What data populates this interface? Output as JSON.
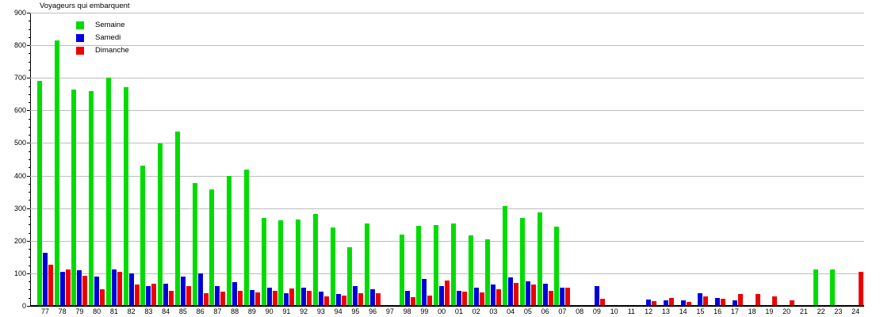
{
  "title": "Voyageurs qui embarquent",
  "colors": {
    "semaine": "#00dc00",
    "samedi": "#0000dc",
    "dimanche": "#ee0000",
    "grid": "#bdbdbd",
    "axis": "#000000"
  },
  "legend": {
    "items": [
      {
        "label": "Semaine",
        "color": "#00dc00"
      },
      {
        "label": "Samedi",
        "color": "#0000dc"
      },
      {
        "label": "Dimanche",
        "color": "#ee0000"
      }
    ]
  },
  "chart_data": {
    "type": "bar",
    "title": "Voyageurs qui embarquent",
    "categories": [
      "77",
      "78",
      "79",
      "80",
      "81",
      "82",
      "83",
      "84",
      "85",
      "86",
      "87",
      "88",
      "89",
      "90",
      "91",
      "92",
      "93",
      "94",
      "95",
      "96",
      "97",
      "98",
      "99",
      "00",
      "01",
      "02",
      "03",
      "04",
      "05",
      "06",
      "07",
      "08",
      "09",
      "10",
      "11",
      "12",
      "13",
      "14",
      "15",
      "16",
      "17",
      "18",
      "19",
      "20",
      "21",
      "22",
      "23",
      "24"
    ],
    "series": [
      {
        "name": "Semaine",
        "color": "#00dc00",
        "values": [
          690,
          815,
          663,
          659,
          700,
          671,
          430,
          498,
          535,
          376,
          358,
          398,
          418,
          270,
          263,
          264,
          281,
          242,
          179,
          252,
          0,
          220,
          246,
          249,
          253,
          217,
          205,
          307,
          271,
          286,
          243,
          0,
          0,
          0,
          0,
          0,
          0,
          0,
          0,
          0,
          0,
          0,
          0,
          0,
          0,
          112,
          112,
          0
        ]
      },
      {
        "name": "Samedi",
        "color": "#0000dc",
        "values": [
          162,
          104,
          110,
          90,
          113,
          100,
          60,
          68,
          90,
          100,
          60,
          73,
          49,
          56,
          38,
          57,
          43,
          36,
          62,
          51,
          0,
          46,
          82,
          60,
          47,
          55,
          65,
          87,
          75,
          67,
          55,
          0,
          60,
          0,
          0,
          20,
          16,
          16,
          38,
          25,
          16,
          0,
          0,
          0,
          0,
          0,
          0,
          0
        ]
      },
      {
        "name": "Dimanche",
        "color": "#ee0000",
        "values": [
          127,
          111,
          93,
          50,
          105,
          66,
          68,
          46,
          62,
          39,
          43,
          46,
          41,
          45,
          54,
          47,
          29,
          32,
          38,
          38,
          0,
          27,
          31,
          77,
          44,
          41,
          51,
          71,
          65,
          47,
          55,
          0,
          21,
          0,
          0,
          15,
          24,
          11,
          29,
          22,
          37,
          37,
          29,
          16,
          0,
          0,
          0,
          105
        ]
      }
    ],
    "ylabel": "",
    "xlabel": "",
    "ylim": [
      0,
      900
    ],
    "ytick_major_step": 100,
    "ytick_minor_step": 25,
    "grid": true,
    "legend_position": "top-left"
  }
}
